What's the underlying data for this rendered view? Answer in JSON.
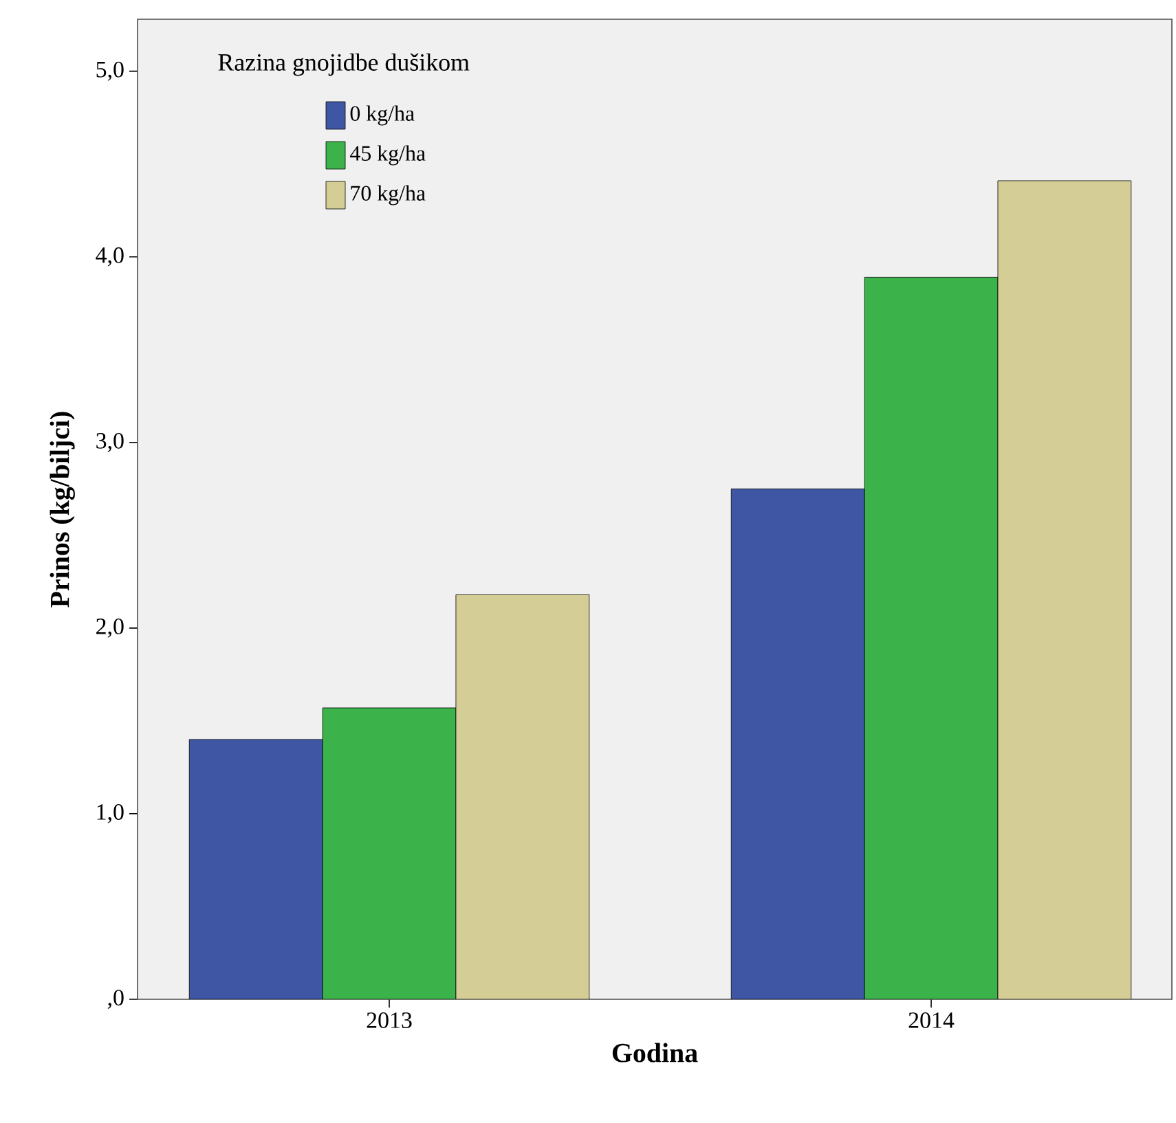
{
  "chart_data": {
    "type": "bar",
    "xlabel": "Godina",
    "ylabel": "Prinos (kg/biljci)",
    "legend_title": "Razina gnojidbe dušikom",
    "categories": [
      "2013",
      "2014"
    ],
    "series": [
      {
        "name": "0 kg/ha",
        "color": "#3f56a5",
        "values": [
          1.4,
          2.75
        ]
      },
      {
        "name": "45 kg/ha",
        "color": "#3bb34a",
        "values": [
          1.57,
          3.89
        ]
      },
      {
        "name": "70 kg/ha",
        "color": "#d4cd95",
        "values": [
          2.18,
          4.41
        ]
      }
    ],
    "ylim": [
      0,
      5.28
    ],
    "yticks": [
      {
        "value": 0,
        "label": ",0"
      },
      {
        "value": 1,
        "label": "1,0"
      },
      {
        "value": 2,
        "label": "2,0"
      },
      {
        "value": 3,
        "label": "3,0"
      },
      {
        "value": 4,
        "label": "4,0"
      },
      {
        "value": 5,
        "label": "5,0"
      }
    ],
    "grid": false,
    "legend": "top left"
  }
}
